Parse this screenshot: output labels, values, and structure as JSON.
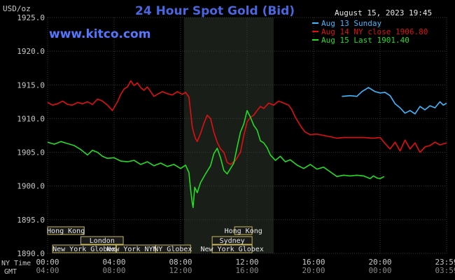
{
  "header": {
    "title": "24 Hour Spot Gold (Bid)",
    "units": "USD/oz",
    "timestamp": "August 15, 2023 19:45",
    "watermark": "www.kitco.com"
  },
  "colors": {
    "background": "#000000",
    "plot_bg": "#000000",
    "night_shade": "#1a1e18",
    "grid": "#3a3a3a",
    "axis_text": "#c8c8c8",
    "title": "#4a66e0",
    "aug13": "#3fb8ff",
    "aug14": "#e01010",
    "aug15": "#22dd22",
    "session_box": "#1a1a1a",
    "session_border": "#c8b85a",
    "session_text": "#e8e8e8"
  },
  "sessions": [
    {
      "label": "Hong Kong",
      "start": -0.2,
      "end": 2.2
    },
    {
      "label": "London",
      "start": 2.0,
      "end": 4.55
    },
    {
      "label": "New York Globex",
      "start": 0.3,
      "end": 4.1
    },
    {
      "label": "New York NYMEX",
      "start": 4.15,
      "end": 6.5
    },
    {
      "label": "NY Globex",
      "start": 6.5,
      "end": 8.6
    },
    {
      "label": "Hong Kong",
      "start": 11.25,
      "end": 12.3
    },
    {
      "label": "Sydney",
      "start": 9.9,
      "end": 12.3
    },
    {
      "label": "New York Globex",
      "start": 9.9,
      "end": 12.3
    }
  ],
  "chart_data": {
    "type": "line",
    "title": "24 Hour Spot Gold (Bid)",
    "ylabel": "USD/oz",
    "xlim": [
      0,
      24
    ],
    "ylim": [
      1890,
      1925
    ],
    "yticks": [
      1890,
      1895,
      1900,
      1905,
      1910,
      1915,
      1920,
      1925
    ],
    "ytick_labels": [
      "1890.0",
      "1895.0",
      "1900.0",
      "1905.0",
      "1910.0",
      "1915.0",
      "1920.0",
      "1925.0"
    ],
    "xticks": [
      0,
      4,
      8,
      12,
      16,
      20,
      24
    ],
    "xtick_labels_ny": [
      "00:00",
      "04:00",
      "08:00",
      "12:00",
      "16:00",
      "20:00",
      "23:59"
    ],
    "xtick_labels_gmt": [
      "04:00",
      "08:00",
      "12:00",
      "16:00",
      "20:00",
      "00:00",
      "03:59"
    ],
    "x_axis_names": [
      "NY Time",
      "GMT"
    ],
    "shaded_range": [
      8.2,
      13.6
    ],
    "grid": true,
    "legend_position": "top-right",
    "series": [
      {
        "name": "Aug 13 Sunday",
        "color": "#3fb8ff",
        "points": [
          [
            17.7,
            1913.3
          ],
          [
            18.2,
            1913.4
          ],
          [
            18.6,
            1913.3
          ],
          [
            18.9,
            1914.0
          ],
          [
            19.3,
            1914.6
          ],
          [
            19.7,
            1914.0
          ],
          [
            20.0,
            1913.8
          ],
          [
            20.3,
            1913.9
          ],
          [
            20.6,
            1913.4
          ],
          [
            20.9,
            1912.2
          ],
          [
            21.2,
            1911.6
          ],
          [
            21.5,
            1910.8
          ],
          [
            21.8,
            1911.2
          ],
          [
            22.1,
            1910.7
          ],
          [
            22.4,
            1911.8
          ],
          [
            22.7,
            1911.3
          ],
          [
            23.0,
            1911.9
          ],
          [
            23.3,
            1911.6
          ],
          [
            23.6,
            1912.5
          ],
          [
            23.8,
            1912.0
          ],
          [
            24.0,
            1912.3
          ]
        ]
      },
      {
        "name": "Aug 14 NY close 1906.80",
        "color": "#e01010",
        "points": [
          [
            0.0,
            1912.4
          ],
          [
            0.3,
            1912.0
          ],
          [
            0.6,
            1912.2
          ],
          [
            0.9,
            1912.6
          ],
          [
            1.2,
            1912.1
          ],
          [
            1.5,
            1912.0
          ],
          [
            1.8,
            1912.4
          ],
          [
            2.1,
            1912.2
          ],
          [
            2.4,
            1912.5
          ],
          [
            2.7,
            1912.1
          ],
          [
            3.0,
            1912.9
          ],
          [
            3.3,
            1912.6
          ],
          [
            3.6,
            1912.0
          ],
          [
            3.9,
            1911.2
          ],
          [
            4.2,
            1912.5
          ],
          [
            4.4,
            1913.6
          ],
          [
            4.6,
            1914.4
          ],
          [
            4.8,
            1914.7
          ],
          [
            5.0,
            1915.6
          ],
          [
            5.2,
            1914.9
          ],
          [
            5.4,
            1915.3
          ],
          [
            5.6,
            1914.6
          ],
          [
            5.8,
            1914.2
          ],
          [
            6.0,
            1914.7
          ],
          [
            6.2,
            1914.0
          ],
          [
            6.4,
            1913.3
          ],
          [
            6.6,
            1913.6
          ],
          [
            6.9,
            1914.0
          ],
          [
            7.2,
            1913.7
          ],
          [
            7.5,
            1913.5
          ],
          [
            7.8,
            1914.0
          ],
          [
            8.1,
            1913.6
          ],
          [
            8.3,
            1913.9
          ],
          [
            8.5,
            1913.2
          ],
          [
            8.6,
            1911.0
          ],
          [
            8.7,
            1908.8
          ],
          [
            8.8,
            1907.8
          ],
          [
            8.9,
            1907.0
          ],
          [
            9.0,
            1906.6
          ],
          [
            9.2,
            1907.8
          ],
          [
            9.4,
            1909.3
          ],
          [
            9.6,
            1910.5
          ],
          [
            9.8,
            1910.0
          ],
          [
            10.0,
            1908.0
          ],
          [
            10.2,
            1906.5
          ],
          [
            10.4,
            1905.5
          ],
          [
            10.6,
            1905.0
          ],
          [
            10.8,
            1903.5
          ],
          [
            11.0,
            1903.2
          ],
          [
            11.3,
            1903.8
          ],
          [
            11.6,
            1905.0
          ],
          [
            11.8,
            1907.5
          ],
          [
            12.0,
            1909.5
          ],
          [
            12.2,
            1910.2
          ],
          [
            12.4,
            1910.5
          ],
          [
            12.6,
            1911.2
          ],
          [
            12.8,
            1911.8
          ],
          [
            13.0,
            1911.5
          ],
          [
            13.3,
            1912.3
          ],
          [
            13.6,
            1912.0
          ],
          [
            13.9,
            1912.6
          ],
          [
            14.2,
            1912.3
          ],
          [
            14.5,
            1912.0
          ],
          [
            14.7,
            1911.3
          ],
          [
            14.9,
            1910.2
          ],
          [
            15.1,
            1909.4
          ],
          [
            15.3,
            1908.6
          ],
          [
            15.5,
            1908.0
          ],
          [
            15.8,
            1907.6
          ],
          [
            16.2,
            1907.7
          ],
          [
            16.6,
            1907.5
          ],
          [
            17.0,
            1907.3
          ],
          [
            17.4,
            1907.1
          ],
          [
            17.8,
            1907.2
          ],
          [
            18.4,
            1907.2
          ],
          [
            19.0,
            1907.2
          ],
          [
            19.6,
            1907.1
          ],
          [
            20.0,
            1907.2
          ],
          [
            20.3,
            1906.3
          ],
          [
            20.6,
            1905.5
          ],
          [
            20.9,
            1906.5
          ],
          [
            21.2,
            1905.2
          ],
          [
            21.5,
            1906.8
          ],
          [
            21.8,
            1905.5
          ],
          [
            22.1,
            1906.4
          ],
          [
            22.4,
            1905.0
          ],
          [
            22.7,
            1905.8
          ],
          [
            23.0,
            1906.0
          ],
          [
            23.3,
            1906.5
          ],
          [
            23.6,
            1906.1
          ],
          [
            24.0,
            1906.4
          ]
        ]
      },
      {
        "name": "Aug 15 Last 1901.40",
        "color": "#22dd22",
        "points": [
          [
            0.0,
            1906.5
          ],
          [
            0.4,
            1906.2
          ],
          [
            0.8,
            1906.6
          ],
          [
            1.2,
            1906.3
          ],
          [
            1.6,
            1906.0
          ],
          [
            2.0,
            1905.4
          ],
          [
            2.4,
            1904.6
          ],
          [
            2.7,
            1905.3
          ],
          [
            3.0,
            1905.0
          ],
          [
            3.3,
            1904.4
          ],
          [
            3.6,
            1904.1
          ],
          [
            4.0,
            1904.2
          ],
          [
            4.4,
            1903.7
          ],
          [
            4.8,
            1903.6
          ],
          [
            5.2,
            1903.8
          ],
          [
            5.6,
            1903.2
          ],
          [
            6.0,
            1903.6
          ],
          [
            6.4,
            1903.0
          ],
          [
            6.8,
            1903.4
          ],
          [
            7.2,
            1902.9
          ],
          [
            7.6,
            1903.2
          ],
          [
            8.0,
            1902.6
          ],
          [
            8.3,
            1903.1
          ],
          [
            8.5,
            1902.0
          ],
          [
            8.6,
            1899.5
          ],
          [
            8.7,
            1897.5
          ],
          [
            8.75,
            1896.8
          ],
          [
            8.85,
            1899.8
          ],
          [
            9.0,
            1899.0
          ],
          [
            9.2,
            1900.5
          ],
          [
            9.5,
            1901.8
          ],
          [
            9.8,
            1903.0
          ],
          [
            10.0,
            1904.8
          ],
          [
            10.2,
            1905.6
          ],
          [
            10.4,
            1904.2
          ],
          [
            10.6,
            1902.3
          ],
          [
            10.8,
            1901.8
          ],
          [
            11.0,
            1902.6
          ],
          [
            11.2,
            1903.4
          ],
          [
            11.4,
            1905.8
          ],
          [
            11.6,
            1908.0
          ],
          [
            11.8,
            1909.2
          ],
          [
            12.0,
            1911.2
          ],
          [
            12.2,
            1910.2
          ],
          [
            12.4,
            1909.0
          ],
          [
            12.6,
            1908.3
          ],
          [
            12.8,
            1906.7
          ],
          [
            13.0,
            1906.4
          ],
          [
            13.2,
            1905.7
          ],
          [
            13.4,
            1904.6
          ],
          [
            13.7,
            1903.8
          ],
          [
            14.0,
            1904.4
          ],
          [
            14.3,
            1903.6
          ],
          [
            14.6,
            1903.9
          ],
          [
            15.0,
            1903.1
          ],
          [
            15.4,
            1902.6
          ],
          [
            15.8,
            1903.2
          ],
          [
            16.2,
            1902.5
          ],
          [
            16.6,
            1902.8
          ],
          [
            17.0,
            1902.1
          ],
          [
            17.4,
            1901.4
          ],
          [
            17.8,
            1901.6
          ],
          [
            18.2,
            1901.5
          ],
          [
            18.6,
            1901.6
          ],
          [
            19.0,
            1901.5
          ],
          [
            19.4,
            1901.1
          ],
          [
            19.6,
            1901.5
          ],
          [
            19.8,
            1901.2
          ],
          [
            20.0,
            1901.1
          ],
          [
            20.25,
            1901.4
          ]
        ]
      }
    ]
  }
}
